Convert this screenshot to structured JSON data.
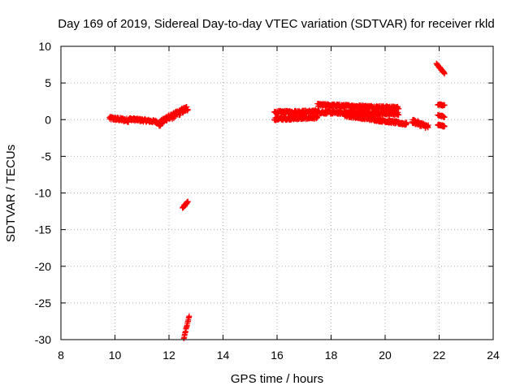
{
  "chart_data": {
    "type": "scatter",
    "title": "Day 169 of 2019, Sidereal Day-to-day VTEC variation (SDTVAR) for receiver rkld",
    "xlabel": "GPS time / hours",
    "ylabel": "SDTVAR / TECUs",
    "xlim": [
      8,
      24
    ],
    "ylim": [
      -30,
      10
    ],
    "xticks": [
      "8",
      "10",
      "12",
      "14",
      "16",
      "18",
      "20",
      "22",
      "24"
    ],
    "yticks": [
      "10",
      "5",
      "0",
      "-5",
      "-10",
      "-15",
      "-20",
      "-25",
      "-30"
    ],
    "grid": true,
    "marker": "plus",
    "color": "#ff0000",
    "segments": [
      {
        "x0": 9.8,
        "x1": 10.5,
        "y0": 0.2,
        "y1": -0.1,
        "jitter": 0.5
      },
      {
        "x0": 10.5,
        "x1": 11.6,
        "y0": 0.1,
        "y1": -0.3,
        "jitter": 0.4
      },
      {
        "x0": 11.6,
        "x1": 12.0,
        "y0": -0.8,
        "y1": 0.5,
        "jitter": 0.8
      },
      {
        "x0": 12.0,
        "x1": 12.7,
        "y0": 0.2,
        "y1": 1.6,
        "jitter": 0.8
      },
      {
        "x0": 12.5,
        "x1": 12.7,
        "y0": -12.0,
        "y1": -11.2,
        "jitter": 0.3
      },
      {
        "x0": 12.55,
        "x1": 12.75,
        "y0": -29.8,
        "y1": -26.8,
        "jitter": 0.2
      },
      {
        "x0": 15.9,
        "x1": 17.5,
        "y0": 1.0,
        "y1": 1.1,
        "jitter": 0.4
      },
      {
        "x0": 15.9,
        "x1": 17.5,
        "y0": 0.1,
        "y1": 0.3,
        "jitter": 0.4
      },
      {
        "x0": 17.5,
        "x1": 20.5,
        "y0": 2.0,
        "y1": 1.6,
        "jitter": 0.4
      },
      {
        "x0": 17.5,
        "x1": 20.5,
        "y0": 1.0,
        "y1": 0.8,
        "jitter": 0.4
      },
      {
        "x0": 18.5,
        "x1": 20.8,
        "y0": 0.6,
        "y1": -0.6,
        "jitter": 0.4
      },
      {
        "x0": 21.0,
        "x1": 21.6,
        "y0": -0.2,
        "y1": -1.0,
        "jitter": 0.6
      },
      {
        "x0": 21.9,
        "x1": 22.2,
        "y0": 7.6,
        "y1": 6.3,
        "jitter": 0.2
      },
      {
        "x0": 21.95,
        "x1": 22.2,
        "y0": 2.1,
        "y1": 1.9,
        "jitter": 0.2
      },
      {
        "x0": 21.95,
        "x1": 22.2,
        "y0": 0.6,
        "y1": 0.4,
        "jitter": 0.2
      },
      {
        "x0": 21.95,
        "x1": 22.2,
        "y0": -0.7,
        "y1": -0.9,
        "jitter": 0.2
      }
    ]
  }
}
